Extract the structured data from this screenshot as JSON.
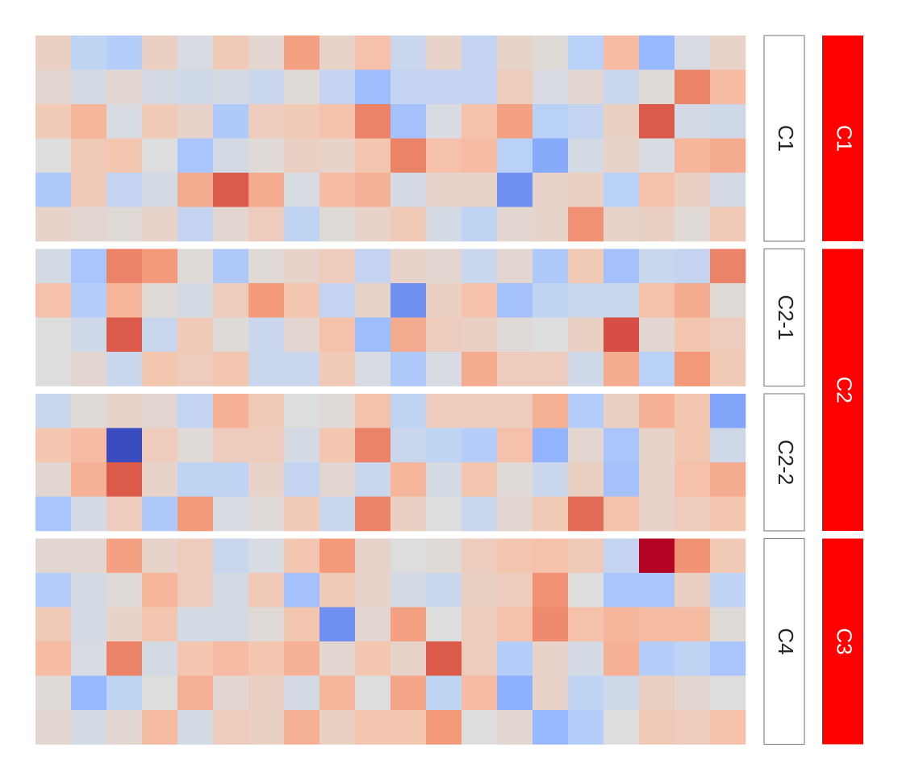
{
  "chart_data": {
    "type": "heatmap",
    "colormap": "coolwarm",
    "zlim": [
      -3,
      3
    ],
    "groups": [
      {
        "label": "C1",
        "splits": [
          {
            "label": "C1",
            "rows": [
              [
                0.4,
                -0.6,
                -0.8,
                0.4,
                -0.1,
                0.6,
                0.2,
                1.4,
                0.3,
                0.8,
                -0.4,
                0.3,
                -0.5,
                0.3,
                0.1,
                -0.7,
                0.9,
                -1.3,
                -0.1,
                0.3
              ],
              [
                0.2,
                -0.2,
                0.2,
                -0.2,
                -0.3,
                -0.2,
                -0.4,
                0.1,
                -0.5,
                -1.2,
                -0.5,
                -0.5,
                -0.5,
                0.5,
                -0.1,
                0.2,
                -0.4,
                0.1,
                1.8,
                0.9
              ],
              [
                0.6,
                1.0,
                -0.1,
                0.6,
                0.3,
                -0.9,
                0.5,
                0.6,
                0.8,
                1.8,
                -1.1,
                -0.1,
                0.8,
                1.4,
                -0.7,
                -0.5,
                0.4,
                2.3,
                -0.2,
                -0.3
              ],
              [
                0.0,
                0.6,
                0.7,
                0.0,
                -1.0,
                -0.2,
                0.1,
                0.4,
                0.3,
                0.7,
                1.8,
                0.8,
                0.9,
                -0.7,
                -1.6,
                -0.2,
                0.3,
                -0.1,
                1.0,
                1.2
              ],
              [
                -0.9,
                0.6,
                -0.5,
                -0.2,
                1.2,
                2.3,
                1.2,
                -0.1,
                0.9,
                1.1,
                -0.2,
                0.3,
                0.3,
                -2.0,
                0.3,
                0.4,
                -0.7,
                0.8,
                0.4,
                -0.2
              ],
              [
                0.3,
                0.2,
                0.1,
                0.3,
                -0.5,
                0.2,
                0.5,
                -0.6,
                0.1,
                0.3,
                0.6,
                -0.2,
                -0.6,
                0.2,
                0.3,
                1.6,
                0.3,
                0.4,
                0.1,
                0.6
              ]
            ]
          }
        ]
      },
      {
        "label": "C2",
        "splits": [
          {
            "label": "C2-1",
            "rows": [
              [
                -0.2,
                -1.0,
                1.8,
                1.5,
                0.1,
                -0.9,
                0.1,
                0.3,
                0.5,
                -0.5,
                0.3,
                0.2,
                -0.4,
                0.2,
                -0.9,
                0.6,
                -1.1,
                -0.4,
                -0.5,
                1.8
              ],
              [
                0.8,
                -0.8,
                1.0,
                0.1,
                -0.2,
                0.5,
                1.5,
                0.7,
                -0.5,
                0.3,
                -2.0,
                0.4,
                0.8,
                -1.1,
                -0.6,
                -0.4,
                -0.4,
                0.8,
                1.2,
                0.1
              ],
              [
                0.0,
                -0.3,
                2.3,
                -0.4,
                0.6,
                0.1,
                -0.4,
                0.2,
                0.8,
                -1.2,
                1.2,
                0.5,
                0.4,
                0.1,
                0.0,
                0.4,
                2.4,
                0.2,
                0.7,
                0.5
              ],
              [
                0.0,
                0.2,
                -0.4,
                0.7,
                0.5,
                0.7,
                -0.4,
                -0.4,
                0.6,
                -0.1,
                -0.9,
                -0.1,
                1.2,
                0.5,
                0.5,
                -0.3,
                1.2,
                -0.7,
                1.5,
                0.6
              ]
            ]
          },
          {
            "label": "C2-2",
            "rows": [
              [
                -0.4,
                0.1,
                0.3,
                0.2,
                -0.5,
                1.1,
                0.6,
                0.0,
                0.1,
                0.8,
                -0.6,
                0.5,
                0.5,
                0.5,
                1.1,
                -0.8,
                0.4,
                1.1,
                0.7,
                -1.7
              ],
              [
                0.7,
                0.9,
                -3.0,
                0.5,
                0.1,
                0.5,
                0.5,
                -0.2,
                0.7,
                1.8,
                -0.4,
                -0.6,
                -0.8,
                0.8,
                -1.4,
                0.2,
                -1.0,
                0.3,
                0.7,
                -0.3
              ],
              [
                0.2,
                1.1,
                2.3,
                0.3,
                -0.6,
                -0.6,
                0.3,
                -0.5,
                0.2,
                -0.4,
                1.0,
                -0.2,
                0.7,
                0.1,
                -0.4,
                0.4,
                -1.1,
                0.3,
                0.8,
                1.2
              ],
              [
                -1.0,
                -0.2,
                0.5,
                -0.9,
                1.5,
                -0.1,
                0.1,
                0.6,
                -0.4,
                1.8,
                0.4,
                0.0,
                -0.4,
                0.2,
                0.6,
                2.1,
                0.8,
                0.3,
                0.5,
                0.7
              ]
            ]
          }
        ]
      },
      {
        "label": "C3",
        "splits": [
          {
            "label": "C4",
            "rows": [
              [
                0.2,
                0.2,
                1.4,
                0.3,
                0.5,
                -0.4,
                -0.1,
                0.7,
                1.5,
                0.3,
                0.0,
                0.1,
                0.5,
                0.7,
                0.8,
                0.6,
                -0.5,
                3.0,
                1.6,
                0.6
              ],
              [
                -0.8,
                -0.2,
                0.1,
                1.0,
                0.5,
                -0.2,
                0.6,
                -1.1,
                0.6,
                0.3,
                -0.2,
                -0.4,
                0.4,
                0.5,
                1.6,
                0.0,
                -1.0,
                -1.0,
                0.4,
                -0.6
              ],
              [
                0.6,
                -0.2,
                0.3,
                0.7,
                -0.2,
                -0.2,
                0.1,
                0.7,
                -2.0,
                0.2,
                1.4,
                0.0,
                0.5,
                0.8,
                1.7,
                0.8,
                1.0,
                0.9,
                0.9,
                0.1
              ],
              [
                0.9,
                -0.1,
                1.8,
                -0.2,
                0.7,
                0.9,
                0.7,
                1.1,
                0.2,
                0.7,
                0.3,
                2.3,
                0.5,
                -0.8,
                0.3,
                -0.2,
                1.1,
                -0.8,
                -0.6,
                -1.0
              ],
              [
                0.1,
                -1.3,
                -0.6,
                0.0,
                1.1,
                0.2,
                0.4,
                -0.2,
                1.0,
                0.0,
                1.3,
                -0.6,
                0.9,
                -1.5,
                0.3,
                -0.6,
                -0.3,
                0.4,
                0.2,
                0.0
              ],
              [
                0.2,
                -0.2,
                0.2,
                0.9,
                -0.2,
                0.5,
                0.4,
                1.1,
                0.4,
                0.7,
                0.7,
                1.5,
                0.0,
                0.2,
                -1.3,
                -0.8,
                0.0,
                0.6,
                0.5,
                0.8
              ]
            ]
          }
        ]
      }
    ]
  }
}
